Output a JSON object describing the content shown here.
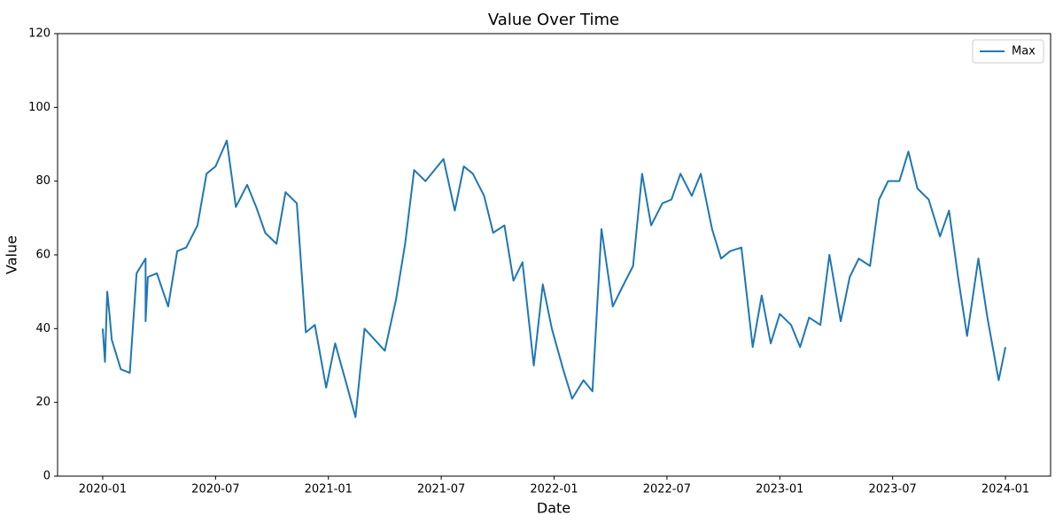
{
  "chart_data": {
    "type": "line",
    "title": "Value Over Time",
    "x_label": "Date",
    "y_label": "Value",
    "x": [
      2020.0,
      2020.01,
      2020.02,
      2020.03,
      2020.04,
      2020.08,
      2020.12,
      2020.15,
      2020.19,
      2020.19,
      2020.2,
      2020.24,
      2020.29,
      2020.33,
      2020.37,
      2020.42,
      2020.46,
      2020.5,
      2020.55,
      2020.59,
      2020.64,
      2020.68,
      2020.72,
      2020.77,
      2020.81,
      2020.86,
      2020.9,
      2020.94,
      2020.99,
      2021.03,
      2021.08,
      2021.12,
      2021.16,
      2021.25,
      2021.3,
      2021.34,
      2021.38,
      2021.43,
      2021.47,
      2021.51,
      2021.56,
      2021.6,
      2021.64,
      2021.69,
      2021.73,
      2021.78,
      2021.82,
      2021.86,
      2021.91,
      2021.95,
      2021.99,
      2022.04,
      2022.08,
      2022.13,
      2022.17,
      2022.21,
      2022.26,
      2022.3,
      2022.35,
      2022.39,
      2022.43,
      2022.48,
      2022.52,
      2022.56,
      2022.61,
      2022.65,
      2022.7,
      2022.74,
      2022.78,
      2022.83,
      2022.88,
      2022.92,
      2022.96,
      2023.0,
      2023.05,
      2023.09,
      2023.13,
      2023.18,
      2023.22,
      2023.27,
      2023.31,
      2023.35,
      2023.4,
      2023.44,
      2023.48,
      2023.53,
      2023.57,
      2023.61,
      2023.66,
      2023.71,
      2023.75,
      2023.79,
      2023.83,
      2023.88,
      2023.92,
      2023.97,
      2024.0
    ],
    "series": [
      {
        "name": "Max",
        "color": "#1f77b4",
        "values": [
          40,
          31,
          50,
          44,
          37,
          29,
          28,
          55,
          59,
          42,
          54,
          55,
          46,
          61,
          62,
          68,
          82,
          84,
          91,
          73,
          79,
          73,
          66,
          63,
          77,
          74,
          39,
          41,
          24,
          36,
          25,
          16,
          40,
          34,
          48,
          63,
          83,
          80,
          83,
          86,
          72,
          84,
          82,
          76,
          66,
          68,
          53,
          58,
          30,
          52,
          40,
          29,
          21,
          26,
          23,
          67,
          46,
          51,
          57,
          82,
          68,
          74,
          75,
          82,
          76,
          82,
          67,
          59,
          61,
          62,
          35,
          49,
          36,
          44,
          41,
          35,
          43,
          41,
          60,
          42,
          54,
          59,
          57,
          75,
          80,
          80,
          88,
          78,
          75,
          65,
          72,
          54,
          38,
          59,
          43,
          26,
          35
        ]
      }
    ],
    "xlim": [
      2019.8,
      2024.2
    ],
    "xticks": [
      {
        "value": 2020,
        "label": "2020-01"
      },
      {
        "value": 2020.5,
        "label": "2020-07"
      },
      {
        "value": 2021,
        "label": "2021-01"
      },
      {
        "value": 2021.5,
        "label": "2021-07"
      },
      {
        "value": 2022,
        "label": "2022-01"
      },
      {
        "value": 2022.5,
        "label": "2022-07"
      },
      {
        "value": 2023,
        "label": "2023-01"
      },
      {
        "value": 2023.5,
        "label": "2023-07"
      },
      {
        "value": 2024,
        "label": "2024-01"
      }
    ],
    "ylim": [
      0,
      120
    ],
    "yticks": [
      0,
      20,
      40,
      60,
      80,
      100,
      120
    ],
    "legend": "upper right",
    "grid": false
  }
}
